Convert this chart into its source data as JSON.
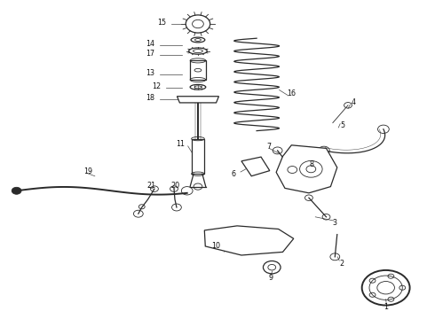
{
  "background_color": "#ffffff",
  "line_color": "#2a2a2a",
  "label_color": "#111111",
  "fig_width": 4.9,
  "fig_height": 3.6,
  "dpi": 100
}
